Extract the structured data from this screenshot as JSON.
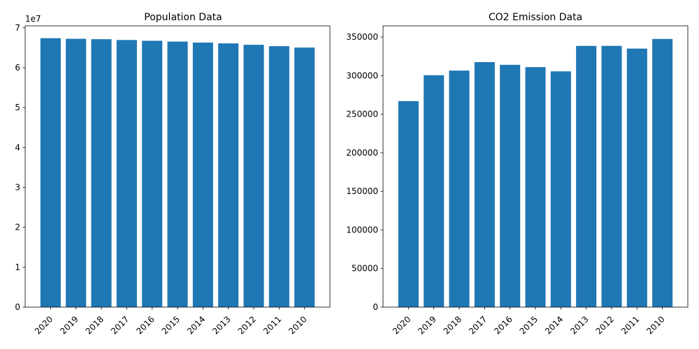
{
  "chart_data": [
    {
      "type": "bar",
      "title": "Population Data",
      "xlabel": "",
      "ylabel": "",
      "offset_text": "1e7",
      "categories": [
        "2020",
        "2019",
        "2018",
        "2017",
        "2016",
        "2015",
        "2014",
        "2013",
        "2012",
        "2011",
        "2010"
      ],
      "values": [
        67400000,
        67250000,
        67150000,
        66950000,
        66750000,
        66550000,
        66300000,
        66100000,
        65750000,
        65400000,
        65050000
      ],
      "ylim": [
        0,
        70500000
      ],
      "yticks": [
        0,
        10000000,
        20000000,
        30000000,
        40000000,
        50000000,
        60000000,
        70000000
      ],
      "ytick_labels": [
        "0",
        "1",
        "2",
        "3",
        "4",
        "5",
        "6",
        "7"
      ],
      "color": "#1f77b4",
      "grid": false,
      "legend": "none"
    },
    {
      "type": "bar",
      "title": "CO2 Emission Data",
      "xlabel": "",
      "ylabel": "",
      "offset_text": "",
      "categories": [
        "2020",
        "2019",
        "2018",
        "2017",
        "2016",
        "2015",
        "2014",
        "2013",
        "2012",
        "2011",
        "2010"
      ],
      "values": [
        267000,
        300500,
        306500,
        317500,
        314000,
        311000,
        305500,
        338500,
        338500,
        335000,
        347500
      ],
      "ylim": [
        0,
        364500
      ],
      "yticks": [
        0,
        50000,
        100000,
        150000,
        200000,
        250000,
        300000,
        350000
      ],
      "ytick_labels": [
        "0",
        "50000",
        "100000",
        "150000",
        "200000",
        "250000",
        "300000",
        "350000"
      ],
      "color": "#1f77b4",
      "grid": false,
      "legend": "none"
    }
  ]
}
